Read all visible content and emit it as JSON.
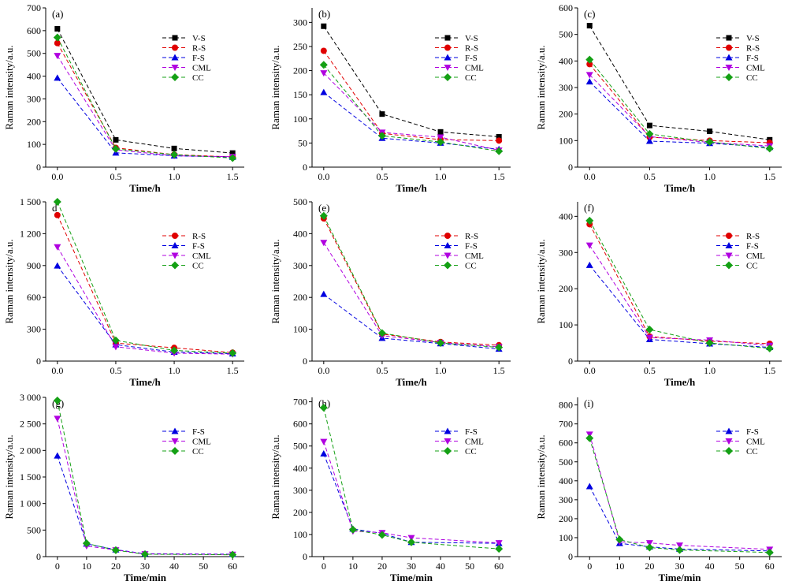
{
  "colors": {
    "V-S": "#000000",
    "R-S": "#e00000",
    "F-S": "#0000e0",
    "CML": "#b000e0",
    "CC": "#14a014"
  },
  "markers": {
    "V-S": "square",
    "R-S": "circle",
    "F-S": "triangle-up",
    "CML": "triangle-down",
    "CC": "diamond"
  },
  "chart_data": [
    {
      "type": "line",
      "label": "(a)",
      "xlabel": "Time/h",
      "ylabel": "Raman intensity/a.u.",
      "x": [
        0.0,
        0.5,
        1.0,
        1.5
      ],
      "xticks": [
        "0.0",
        "0.5",
        "1.0",
        "1.5"
      ],
      "xlim": [
        -0.1,
        1.6
      ],
      "ylim": [
        0,
        700
      ],
      "yticks": [
        0,
        100,
        200,
        300,
        400,
        500,
        600,
        700
      ],
      "yticklabels": [
        "0",
        "100",
        "200",
        "300",
        "400",
        "500",
        "600",
        "700"
      ],
      "series": [
        {
          "name": "V-S",
          "values": [
            608,
            120,
            82,
            62
          ]
        },
        {
          "name": "R-S",
          "values": [
            545,
            85,
            55,
            45
          ]
        },
        {
          "name": "F-S",
          "values": [
            392,
            63,
            50,
            44
          ]
        },
        {
          "name": "CML",
          "values": [
            490,
            76,
            50,
            46
          ]
        },
        {
          "name": "CC",
          "values": [
            570,
            80,
            55,
            40
          ]
        }
      ]
    },
    {
      "type": "line",
      "label": "(b)",
      "xlabel": "Time/h",
      "ylabel": "Raman intensity/a.u.",
      "x": [
        0.0,
        0.5,
        1.0,
        1.5
      ],
      "xticks": [
        "0.0",
        "0.5",
        "1.0",
        "1.5"
      ],
      "xlim": [
        -0.1,
        1.6
      ],
      "ylim": [
        0,
        330
      ],
      "yticks": [
        0,
        50,
        100,
        150,
        200,
        250,
        300
      ],
      "yticklabels": [
        "0",
        "50",
        "100",
        "150",
        "200",
        "250",
        "300"
      ],
      "series": [
        {
          "name": "V-S",
          "values": [
            292,
            110,
            73,
            63
          ]
        },
        {
          "name": "R-S",
          "values": [
            241,
            70,
            57,
            55
          ]
        },
        {
          "name": "F-S",
          "values": [
            155,
            60,
            50,
            37
          ]
        },
        {
          "name": "CML",
          "values": [
            195,
            72,
            62,
            35
          ]
        },
        {
          "name": "CC",
          "values": [
            212,
            65,
            52,
            33
          ]
        }
      ]
    },
    {
      "type": "line",
      "label": "(c)",
      "xlabel": "Time/h",
      "ylabel": "Raman intensity/a.u.",
      "x": [
        0.0,
        0.5,
        1.0,
        1.5
      ],
      "xticks": [
        "0.0",
        "0.5",
        "1.0",
        "1.5"
      ],
      "xlim": [
        -0.1,
        1.6
      ],
      "ylim": [
        0,
        600
      ],
      "yticks": [
        0,
        100,
        200,
        300,
        400,
        500,
        600
      ],
      "yticklabels": [
        "0",
        "100",
        "200",
        "300",
        "400",
        "500",
        "600"
      ],
      "series": [
        {
          "name": "V-S",
          "values": [
            533,
            157,
            135,
            103
          ]
        },
        {
          "name": "R-S",
          "values": [
            388,
            113,
            100,
            92
          ]
        },
        {
          "name": "F-S",
          "values": [
            322,
            98,
            90,
            75
          ]
        },
        {
          "name": "CML",
          "values": [
            348,
            115,
            93,
            80
          ]
        },
        {
          "name": "CC",
          "values": [
            405,
            125,
            95,
            70
          ]
        }
      ]
    },
    {
      "type": "line",
      "label": "d",
      "xlabel": "Time/h",
      "ylabel": "Raman intensity/a.u.",
      "x": [
        0.0,
        0.5,
        1.0,
        1.5
      ],
      "xticks": [
        "0.0",
        "0.5",
        "1.0",
        "1.5"
      ],
      "xlim": [
        -0.1,
        1.6
      ],
      "ylim": [
        0,
        1500
      ],
      "yticks": [
        0,
        300,
        600,
        900,
        1200,
        1500
      ],
      "yticklabels": [
        "0",
        "300",
        "600",
        "900",
        "1 200",
        "1 500"
      ],
      "series": [
        {
          "name": "R-S",
          "values": [
            1375,
            170,
            125,
            80
          ]
        },
        {
          "name": "F-S",
          "values": [
            898,
            155,
            85,
            70
          ]
        },
        {
          "name": "CML",
          "values": [
            1075,
            135,
            75,
            65
          ]
        },
        {
          "name": "CC",
          "values": [
            1500,
            195,
            100,
            75
          ]
        }
      ]
    },
    {
      "type": "line",
      "label": "(e)",
      "xlabel": "Time/h",
      "ylabel": "Raman intensity/a.u.",
      "x": [
        0.0,
        0.5,
        1.0,
        1.5
      ],
      "xticks": [
        "0.0",
        "0.5",
        "1.0",
        "1.5"
      ],
      "xlim": [
        -0.1,
        1.6
      ],
      "ylim": [
        0,
        500
      ],
      "yticks": [
        0,
        100,
        200,
        300,
        400,
        500
      ],
      "yticklabels": [
        "0",
        "100",
        "200",
        "300",
        "400",
        "500"
      ],
      "series": [
        {
          "name": "R-S",
          "values": [
            448,
            85,
            60,
            50
          ]
        },
        {
          "name": "F-S",
          "values": [
            210,
            72,
            55,
            38
          ]
        },
        {
          "name": "CML",
          "values": [
            372,
            80,
            58,
            45
          ]
        },
        {
          "name": "CC",
          "values": [
            456,
            88,
            57,
            43
          ]
        }
      ]
    },
    {
      "type": "line",
      "label": "(f)",
      "xlabel": "Time/h",
      "ylabel": "Raman intensity/a.u.",
      "x": [
        0.0,
        0.5,
        1.0,
        1.5
      ],
      "xticks": [
        "0.0",
        "0.5",
        "1.0",
        "1.5"
      ],
      "xlim": [
        -0.1,
        1.6
      ],
      "ylim": [
        0,
        440
      ],
      "yticks": [
        0,
        100,
        200,
        300,
        400
      ],
      "yticklabels": [
        "0",
        "100",
        "200",
        "300",
        "400"
      ],
      "series": [
        {
          "name": "R-S",
          "values": [
            378,
            68,
            55,
            48
          ]
        },
        {
          "name": "F-S",
          "values": [
            265,
            60,
            48,
            38
          ]
        },
        {
          "name": "CML",
          "values": [
            320,
            65,
            58,
            43
          ]
        },
        {
          "name": "CC",
          "values": [
            388,
            87,
            50,
            35
          ]
        }
      ]
    },
    {
      "type": "line",
      "label": "(g)",
      "xlabel": "Time/min",
      "ylabel": "Raman intensity/a.u.",
      "x": [
        0,
        10,
        20,
        30,
        60
      ],
      "xtickvalues": [
        0,
        10,
        20,
        30,
        40,
        50,
        60
      ],
      "xticks": [
        "0",
        "10",
        "20",
        "30",
        "40",
        "50",
        "60"
      ],
      "xlim": [
        -4,
        64
      ],
      "ylim": [
        0,
        3000
      ],
      "yticks": [
        0,
        500,
        1000,
        1500,
        2000,
        2500,
        3000
      ],
      "yticklabels": [
        "0",
        "500",
        "1 000",
        "1 500",
        "2 000",
        "2 500",
        "3 000"
      ],
      "series": [
        {
          "name": "F-S",
          "values": [
            1900,
            240,
            130,
            55,
            45
          ]
        },
        {
          "name": "CML",
          "values": [
            2600,
            200,
            125,
            50,
            40
          ]
        },
        {
          "name": "CC",
          "values": [
            2940,
            250,
            120,
            45,
            35
          ]
        }
      ]
    },
    {
      "type": "line",
      "label": "(h)",
      "xlabel": "Time/min",
      "ylabel": "Raman intensity/a.u.",
      "x": [
        0,
        10,
        20,
        30,
        60
      ],
      "xtickvalues": [
        0,
        10,
        20,
        30,
        40,
        50,
        60
      ],
      "xticks": [
        "0",
        "10",
        "20",
        "30",
        "40",
        "50",
        "60"
      ],
      "xlim": [
        -4,
        64
      ],
      "ylim": [
        0,
        720
      ],
      "yticks": [
        0,
        100,
        200,
        300,
        400,
        500,
        600,
        700
      ],
      "yticklabels": [
        "0",
        "100",
        "200",
        "300",
        "400",
        "500",
        "600",
        "700"
      ],
      "series": [
        {
          "name": "F-S",
          "values": [
            465,
            125,
            105,
            65,
            60
          ]
        },
        {
          "name": "CML",
          "values": [
            520,
            115,
            108,
            85,
            62
          ]
        },
        {
          "name": "CC",
          "values": [
            673,
            122,
            98,
            65,
            35
          ]
        }
      ]
    },
    {
      "type": "line",
      "label": "(i)",
      "xlabel": "Time/min",
      "ylabel": "Raman intensity/a.u.",
      "x": [
        0,
        10,
        20,
        30,
        60
      ],
      "xtickvalues": [
        0,
        10,
        20,
        30,
        40,
        50,
        60
      ],
      "xticks": [
        "0",
        "10",
        "20",
        "30",
        "40",
        "50",
        "60"
      ],
      "xlim": [
        -4,
        64
      ],
      "ylim": [
        0,
        840
      ],
      "yticks": [
        0,
        100,
        200,
        300,
        400,
        500,
        600,
        700,
        800
      ],
      "yticklabels": [
        "0",
        "100",
        "200",
        "300",
        "400",
        "500",
        "600",
        "700",
        "800"
      ],
      "series": [
        {
          "name": "F-S",
          "values": [
            370,
            70,
            52,
            40,
            30
          ]
        },
        {
          "name": "CML",
          "values": [
            645,
            78,
            72,
            60,
            38
          ]
        },
        {
          "name": "CC",
          "values": [
            625,
            90,
            48,
            35,
            22
          ]
        }
      ]
    }
  ]
}
